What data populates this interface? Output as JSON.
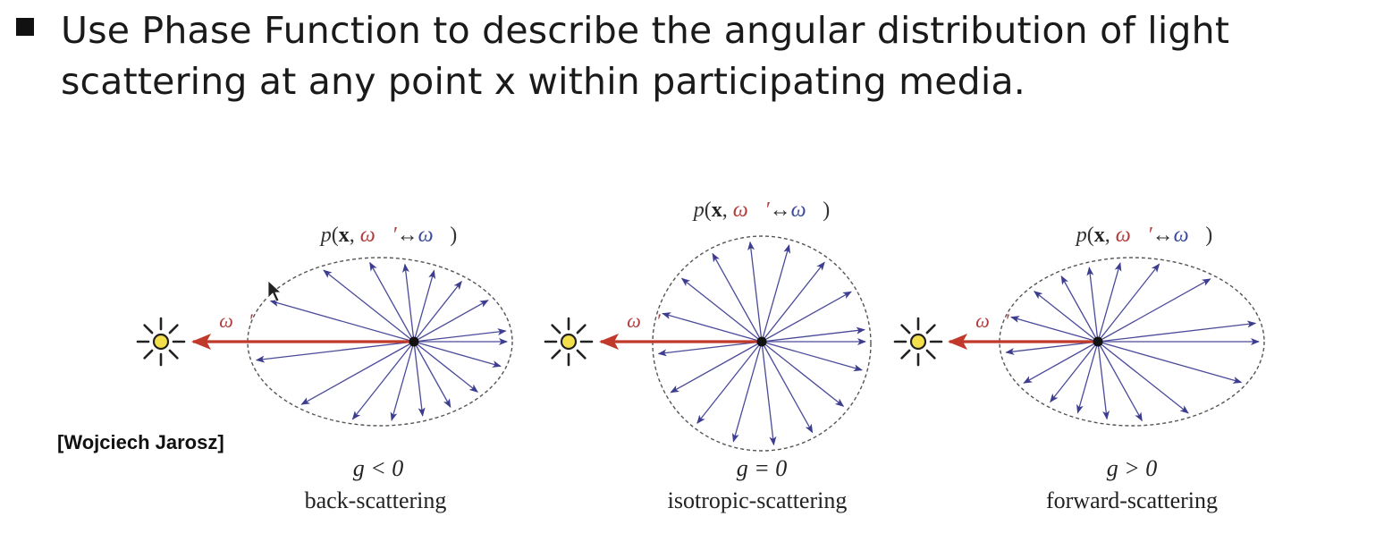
{
  "bullet": {
    "text": "Use Phase Function to describe the angular distribution of light scattering at any point x within participating media."
  },
  "credit": "[Wojciech Jarosz]",
  "phase_label": {
    "p": "p",
    "open": "(",
    "x": "x",
    "comma": ",",
    "omega_prime": "ω⃗′",
    "arrow": "↔",
    "omega": "ω⃗",
    "close": ")"
  },
  "incident_label": "ω⃗′",
  "panels": [
    {
      "id": "back",
      "g_label": "g < 0",
      "caption": "back-scattering"
    },
    {
      "id": "iso",
      "g_label": "g = 0",
      "caption": "isotropic-scattering"
    },
    {
      "id": "forward",
      "g_label": "g > 0",
      "caption": "forward-scattering"
    }
  ],
  "colors": {
    "arrow": "#4a4a9a",
    "incident": "#c0392b",
    "omega_prime": "#b03a3a",
    "omega": "#3a4a9a",
    "ellipse": "#555555",
    "sun_fill": "#f4e04d",
    "sun_stroke": "#222222"
  }
}
